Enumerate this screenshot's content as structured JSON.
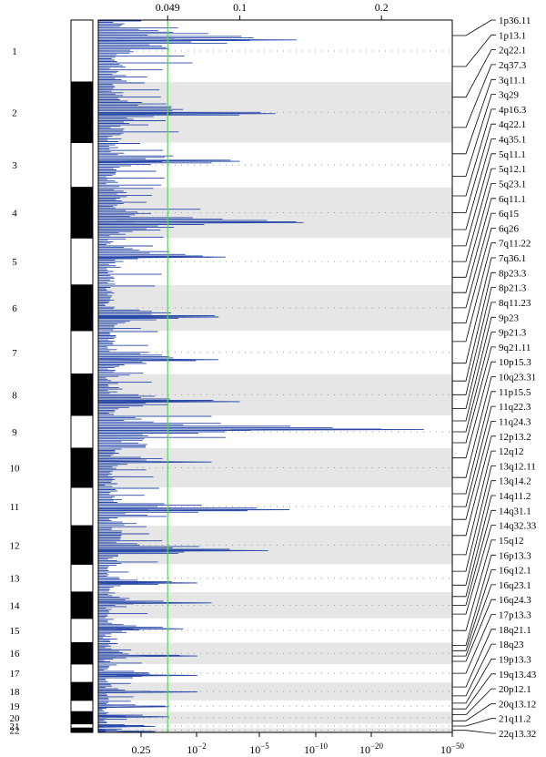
{
  "chart_data": {
    "type": "line",
    "title": "",
    "xlabel": "",
    "ylabel": "",
    "top_axis": {
      "scale": "linear",
      "range": [
        0,
        0.25
      ],
      "ticks": [
        {
          "value": 0.049,
          "label": "0.049"
        },
        {
          "value": 0.1,
          "label": "0.1"
        },
        {
          "value": 0.2,
          "label": "0.2"
        }
      ]
    },
    "bottom_axis": {
      "scale": "log p-value (reversed)",
      "ticks": [
        {
          "value": 0.25,
          "label": "0.25",
          "base": "",
          "exp": ""
        },
        {
          "value": 0.01,
          "label": "10^-2",
          "base": "10",
          "exp": "−2"
        },
        {
          "value": 1e-05,
          "label": "10^-5",
          "base": "10",
          "exp": "−5"
        },
        {
          "value": 1e-10,
          "label": "10^-10",
          "base": "10",
          "exp": "−10"
        },
        {
          "value": 1e-20,
          "label": "10^-20",
          "base": "10",
          "exp": "−20"
        },
        {
          "value": 1e-50,
          "label": "10^-50",
          "base": "10",
          "exp": "−50"
        }
      ]
    },
    "threshold": {
      "value": 0.049,
      "color": "#5bd35b"
    },
    "line_color": "#2a4aa8",
    "band_color": "#e6e6e6",
    "chromosomes": [
      {
        "label": "1",
        "span": [
          0,
          0.087
        ],
        "max": 0.14
      },
      {
        "label": "2",
        "span": [
          0.087,
          0.172
        ],
        "max": 0.125
      },
      {
        "label": "3",
        "span": [
          0.172,
          0.235
        ],
        "max": 0.1
      },
      {
        "label": "4",
        "span": [
          0.235,
          0.306
        ],
        "max": 0.145
      },
      {
        "label": "5",
        "span": [
          0.306,
          0.372
        ],
        "max": 0.09
      },
      {
        "label": "6",
        "span": [
          0.372,
          0.436
        ],
        "max": 0.085
      },
      {
        "label": "7",
        "span": [
          0.436,
          0.497
        ],
        "max": 0.085
      },
      {
        "label": "8",
        "span": [
          0.497,
          0.555
        ],
        "max": 0.1
      },
      {
        "label": "9",
        "span": [
          0.555,
          0.601
        ],
        "max": 0.23
      },
      {
        "label": "10",
        "span": [
          0.601,
          0.656
        ],
        "max": 0.08
      },
      {
        "label": "11",
        "span": [
          0.656,
          0.71
        ],
        "max": 0.135
      },
      {
        "label": "12",
        "span": [
          0.71,
          0.764
        ],
        "max": 0.12
      },
      {
        "label": "13",
        "span": [
          0.764,
          0.803
        ],
        "max": 0.07
      },
      {
        "label": "14",
        "span": [
          0.803,
          0.84
        ],
        "max": 0.08
      },
      {
        "label": "15",
        "span": [
          0.84,
          0.874
        ],
        "max": 0.06
      },
      {
        "label": "16",
        "span": [
          0.874,
          0.904
        ],
        "max": 0.07
      },
      {
        "label": "17",
        "span": [
          0.904,
          0.93
        ],
        "max": 0.07
      },
      {
        "label": "18",
        "span": [
          0.93,
          0.955
        ],
        "max": 0.07
      },
      {
        "label": "19",
        "span": [
          0.955,
          0.971
        ],
        "max": 0.05
      },
      {
        "label": "20",
        "span": [
          0.971,
          0.988
        ],
        "max": 0.05
      },
      {
        "label": "21",
        "span": [
          0.988,
          0.994
        ],
        "max": 0.04
      },
      {
        "label": "22",
        "span": [
          0.994,
          1.0
        ],
        "max": 0.04
      }
    ],
    "cytobands": [
      "1p36.11",
      "1p13.1",
      "2q22.1",
      "2q37.3",
      "3q11.1",
      "3q29",
      "4p16.3",
      "4q22.1",
      "4q35.1",
      "5q11.1",
      "5q12.1",
      "5q23.1",
      "6q11.1",
      "6q15",
      "6q26",
      "7q11.22",
      "7q36.1",
      "8p23.3",
      "8p21.3",
      "8q11.23",
      "9p23",
      "9p21.3",
      "9q21.11",
      "10p15.3",
      "10q23.31",
      "11p15.5",
      "11q22.3",
      "11q24.3",
      "12p13.2",
      "12q12",
      "13q12.11",
      "13q14.2",
      "14q11.2",
      "14q31.1",
      "14q32.33",
      "15q12",
      "16p13.3",
      "16q12.1",
      "16q23.1",
      "16q24.3",
      "17p13.3",
      "18q21.1",
      "18q23",
      "19p13.3",
      "19q13.43",
      "20p12.1",
      "20q13.12",
      "21q11.2",
      "22q13.32"
    ]
  }
}
